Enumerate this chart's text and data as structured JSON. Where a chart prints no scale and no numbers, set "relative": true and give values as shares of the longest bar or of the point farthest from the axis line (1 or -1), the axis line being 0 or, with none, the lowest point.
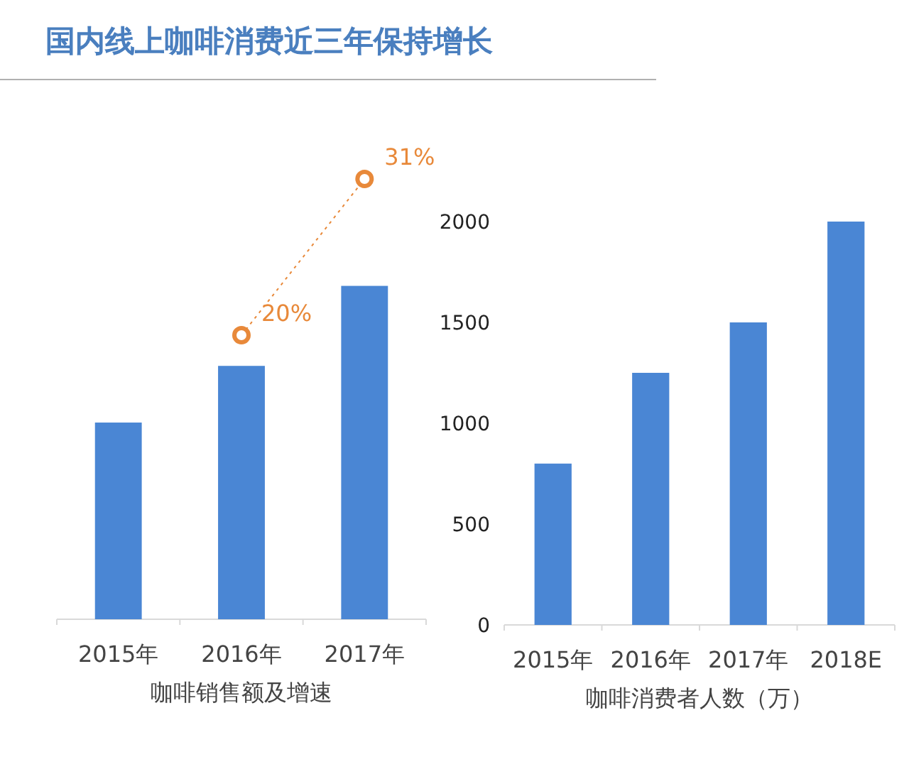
{
  "chart_data": [
    {
      "type": "bar",
      "title": "国内线上咖啡消费近三年保持增长",
      "xlabel": "咖啡销售额及增速",
      "categories": [
        "2015年",
        "2016年",
        "2017年"
      ],
      "relative": true,
      "tick_labels": "x",
      "color": "#4a86d4",
      "values": [
        0.59,
        0.76,
        1
      ]
    },
    {
      "type": "line",
      "categories": [
        null,
        null,
        null
      ],
      "tick_labels": false,
      "marker": "circle",
      "line_style": "dotted",
      "series": [
        {
          "color": "#e8893a",
          "values": [
            null,
            20,
            31
          ],
          "value_labels": [
            null,
            "20%",
            "31%"
          ]
        }
      ]
    },
    {
      "type": "bar",
      "xlabel": "咖啡消费者人数（万）",
      "categories": [
        "2015年",
        "2016年",
        "2017年",
        "2018E"
      ],
      "values": [
        800,
        1250,
        1500,
        2000
      ],
      "color": "#4a86d4",
      "ylim": [
        0,
        2000
      ],
      "yticks": [
        0,
        500,
        1000,
        1500,
        2000
      ]
    }
  ]
}
